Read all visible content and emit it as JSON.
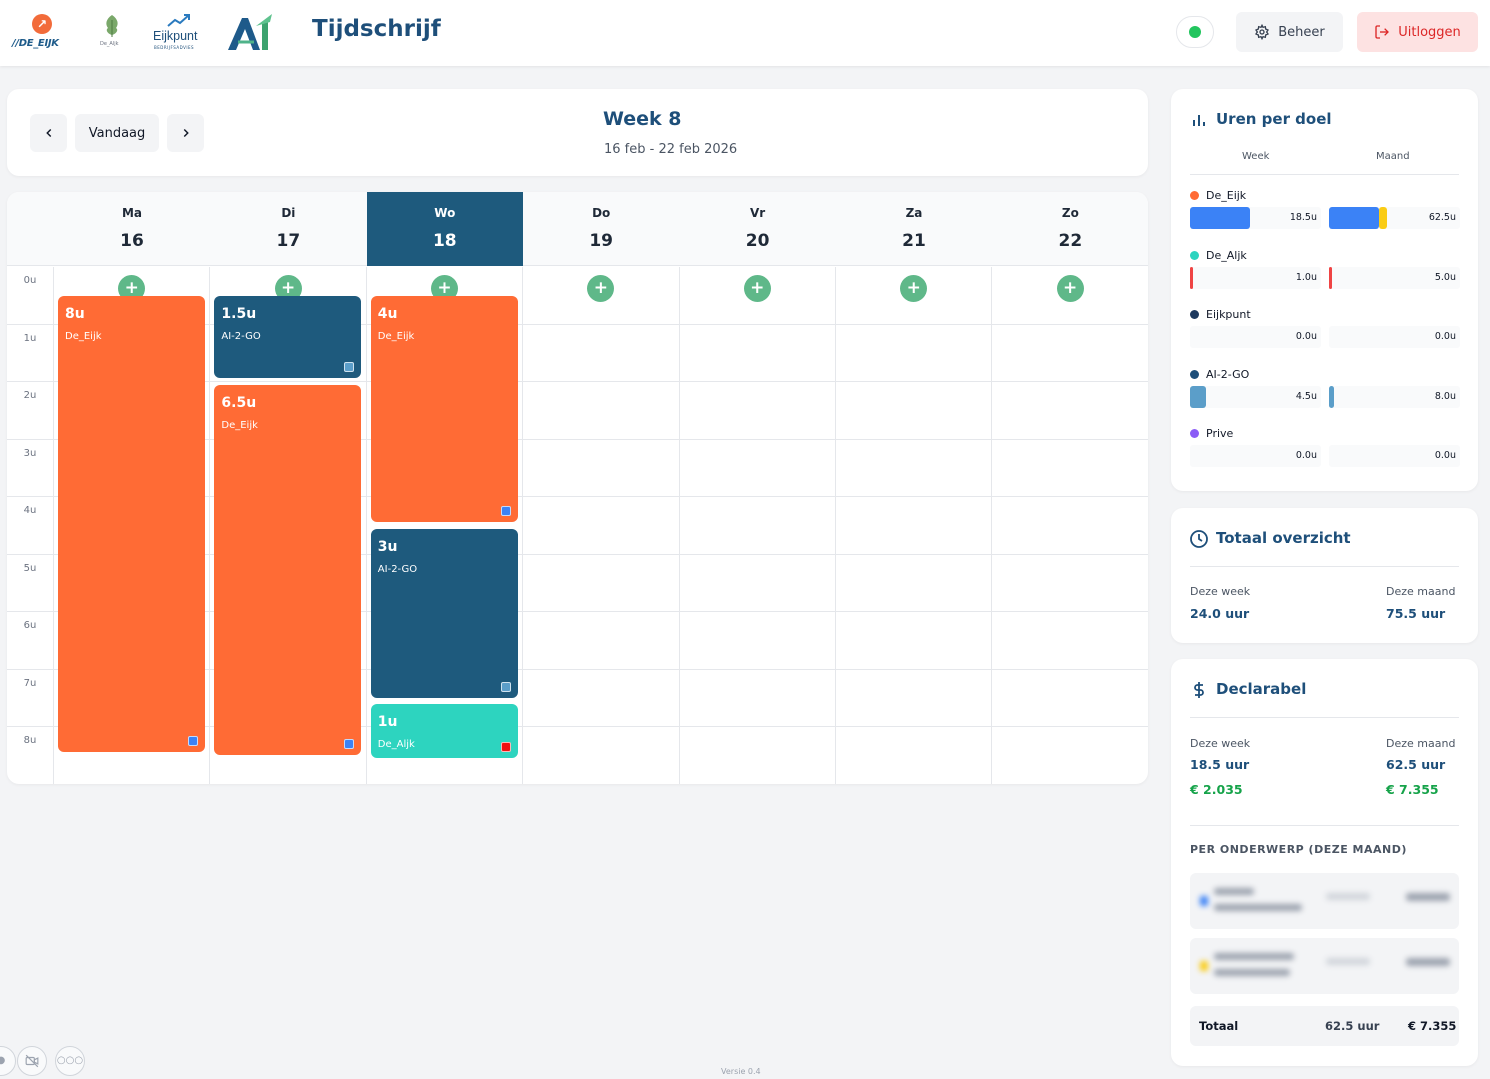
{
  "header": {
    "title": "Tijdschrijf",
    "logos": {
      "de_eijk": "//DE_EIJK",
      "de_aljk": "De_Aljk",
      "eijkpunt": "Eijkpunt",
      "eijkpunt_sub": "BEDRIJFSADVIES",
      "ai": "AI"
    },
    "beheer_label": "Beheer",
    "logout_label": "Uitloggen",
    "status_color": "#22c55e"
  },
  "week_nav": {
    "today_label": "Vandaag",
    "title": "Week 8",
    "range": "16 feb - 22 feb 2026"
  },
  "calendar": {
    "days": [
      {
        "name": "Ma",
        "num": "16",
        "today": false
      },
      {
        "name": "Di",
        "num": "17",
        "today": false
      },
      {
        "name": "Wo",
        "num": "18",
        "today": true
      },
      {
        "name": "Do",
        "num": "19",
        "today": false
      },
      {
        "name": "Vr",
        "num": "20",
        "today": false
      },
      {
        "name": "Za",
        "num": "21",
        "today": false
      },
      {
        "name": "Zo",
        "num": "22",
        "today": false
      }
    ],
    "hours": [
      "0u",
      "1u",
      "2u",
      "3u",
      "4u",
      "5u",
      "6u",
      "7u",
      "8u"
    ],
    "add_label": "+",
    "events": [
      {
        "day": 0,
        "start": 0.75,
        "duration": 8,
        "hours": "8u",
        "label": "De_Eijk",
        "color": "orange",
        "marker": "#3b82f6"
      },
      {
        "day": 1,
        "start": 0.75,
        "duration": 1.5,
        "hours": "1.5u",
        "label": "AI-2-GO",
        "color": "navy",
        "marker": "#5b9ec9"
      },
      {
        "day": 1,
        "start": 2.3,
        "duration": 6.5,
        "hours": "6.5u",
        "label": "De_Eijk",
        "color": "orange",
        "marker": "#3b82f6"
      },
      {
        "day": 2,
        "start": 0.75,
        "duration": 4,
        "hours": "4u",
        "label": "De_Eijk",
        "color": "orange",
        "marker": "#3b82f6"
      },
      {
        "day": 2,
        "start": 4.8,
        "duration": 3,
        "hours": "3u",
        "label": "AI-2-GO",
        "color": "navy",
        "marker": "#5b9ec9"
      },
      {
        "day": 2,
        "start": 7.85,
        "duration": 1,
        "hours": "1u",
        "label": "De_Aljk",
        "color": "teal",
        "marker": "#ef1010"
      }
    ]
  },
  "goals_panel": {
    "title": "Uren per doel",
    "col_week": "Week",
    "col_month": "Maand",
    "goals": [
      {
        "name": "De_Eijk",
        "dot": "#ff6b35",
        "week": "18.5u",
        "month": "62.5u",
        "week_fill": 0.46,
        "month_fill": 0.38,
        "fill_color": "#3b82f6",
        "month_accent": "#facc15"
      },
      {
        "name": "De_Aljk",
        "dot": "#2dd4bf",
        "week": "1.0u",
        "month": "5.0u",
        "week_fill": 0.025,
        "month_fill": 0.025,
        "fill_color": "#ef4444",
        "month_accent": ""
      },
      {
        "name": "Eijkpunt",
        "dot": "#1e3a5f",
        "week": "0.0u",
        "month": "0.0u",
        "week_fill": 0,
        "month_fill": 0,
        "fill_color": "#1e3a5f",
        "month_accent": ""
      },
      {
        "name": "AI-2-GO",
        "dot": "#1e4f7a",
        "week": "4.5u",
        "month": "8.0u",
        "week_fill": 0.12,
        "month_fill": 0.04,
        "fill_color": "#5b9ec9",
        "month_accent": ""
      },
      {
        "name": "Prive",
        "dot": "#8b5cf6",
        "week": "0.0u",
        "month": "0.0u",
        "week_fill": 0,
        "month_fill": 0,
        "fill_color": "#8b5cf6",
        "month_accent": ""
      }
    ]
  },
  "total_panel": {
    "title": "Totaal overzicht",
    "week_label": "Deze week",
    "week_value": "24.0 uur",
    "month_label": "Deze maand",
    "month_value": "75.5 uur"
  },
  "declarable_panel": {
    "title": "Declarabel",
    "week_label": "Deze week",
    "week_hours": "18.5 uur",
    "week_amount": "€ 2.035",
    "month_label": "Deze maand",
    "month_hours": "62.5 uur",
    "month_amount": "€ 7.355",
    "subjects_heading": "PER ONDERWERP (DEZE MAAND)",
    "subjects": [
      {
        "name": "",
        "hours": "",
        "amount": "",
        "color": "#3b82f6"
      },
      {
        "name": "",
        "hours": "",
        "amount": "",
        "color": "#facc15"
      }
    ],
    "total_label": "Totaal",
    "total_hours": "62.5 uur",
    "total_amount": "€ 7.355"
  },
  "footer": {
    "version": "Versie 0.4"
  }
}
